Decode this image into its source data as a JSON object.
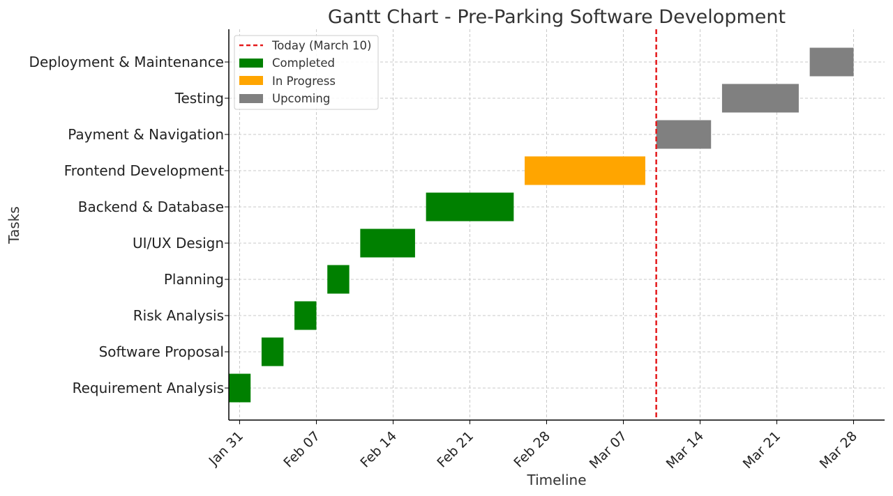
{
  "chart_data": {
    "type": "gantt",
    "title": "Gantt Chart - Pre-Parking Software Development",
    "xlabel": "Timeline",
    "ylabel": "Tasks",
    "today": {
      "date": "2025-03-10",
      "label": "Today (March 10)"
    },
    "xlim": [
      "2025-01-30",
      "2025-03-31"
    ],
    "x_ticks": [
      {
        "date": "2025-01-31",
        "label": "Jan 31"
      },
      {
        "date": "2025-02-07",
        "label": "Feb 07"
      },
      {
        "date": "2025-02-14",
        "label": "Feb 14"
      },
      {
        "date": "2025-02-21",
        "label": "Feb 21"
      },
      {
        "date": "2025-02-28",
        "label": "Feb 28"
      },
      {
        "date": "2025-03-07",
        "label": "Mar 07"
      },
      {
        "date": "2025-03-14",
        "label": "Mar 14"
      },
      {
        "date": "2025-03-21",
        "label": "Mar 21"
      },
      {
        "date": "2025-03-28",
        "label": "Mar 28"
      }
    ],
    "grid": true,
    "legend_position": "top-left",
    "statuses": [
      {
        "key": "completed",
        "label": "Completed",
        "color": "#008000"
      },
      {
        "key": "in_progress",
        "label": "In Progress",
        "color": "#FFA500"
      },
      {
        "key": "upcoming",
        "label": "Upcoming",
        "color": "#808080"
      }
    ],
    "today_color": "#E41A1C",
    "tasks": [
      {
        "name": "Requirement Analysis",
        "start": "2025-01-30",
        "end": "2025-02-01",
        "status": "completed"
      },
      {
        "name": "Software Proposal",
        "start": "2025-02-02",
        "end": "2025-02-04",
        "status": "completed"
      },
      {
        "name": "Risk Analysis",
        "start": "2025-02-05",
        "end": "2025-02-07",
        "status": "completed"
      },
      {
        "name": "Planning",
        "start": "2025-02-08",
        "end": "2025-02-10",
        "status": "completed"
      },
      {
        "name": "UI/UX Design",
        "start": "2025-02-11",
        "end": "2025-02-16",
        "status": "completed"
      },
      {
        "name": "Backend & Database",
        "start": "2025-02-17",
        "end": "2025-02-25",
        "status": "completed"
      },
      {
        "name": "Frontend Development",
        "start": "2025-02-26",
        "end": "2025-03-09",
        "status": "in_progress"
      },
      {
        "name": "Payment & Navigation",
        "start": "2025-03-10",
        "end": "2025-03-15",
        "status": "upcoming"
      },
      {
        "name": "Testing",
        "start": "2025-03-16",
        "end": "2025-03-23",
        "status": "upcoming"
      },
      {
        "name": "Deployment & Maintenance",
        "start": "2025-03-24",
        "end": "2025-03-28",
        "status": "upcoming"
      }
    ]
  }
}
